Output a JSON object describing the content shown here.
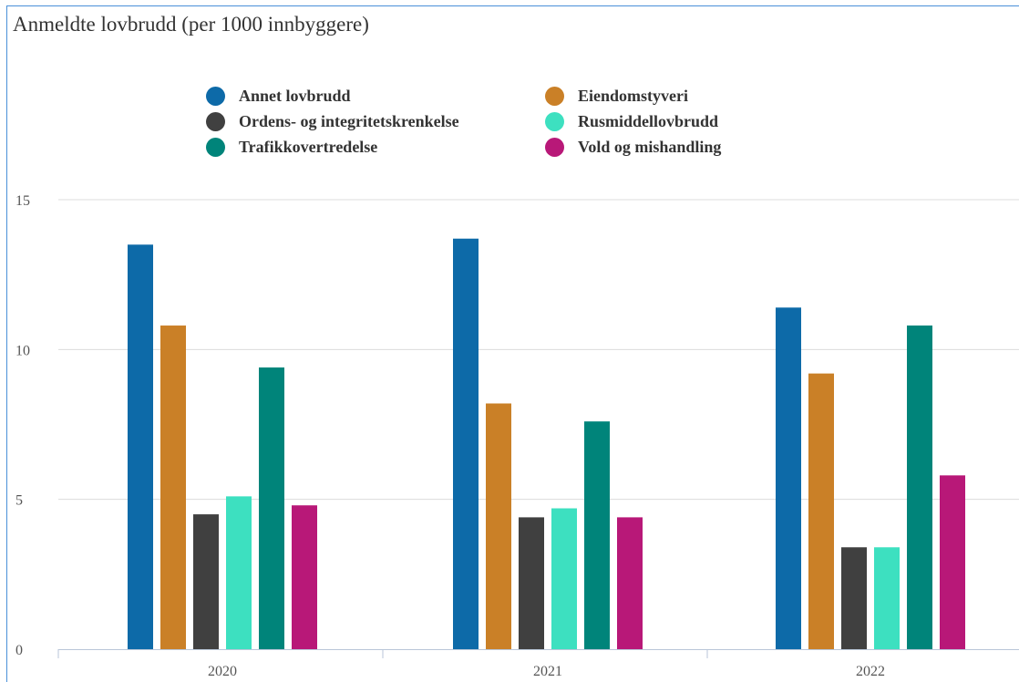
{
  "chart_data": {
    "type": "bar",
    "title": "Anmeldte lovbrudd (per 1000 innbyggere)",
    "xlabel": "",
    "ylabel": "",
    "categories": [
      "2020",
      "2021",
      "2022"
    ],
    "ylim": [
      0,
      15
    ],
    "yticks": [
      0,
      5,
      10,
      15
    ],
    "grid": true,
    "legend_position": "top",
    "series": [
      {
        "name": "Annet lovbrudd",
        "color": "#0d6aa8",
        "values": [
          13.5,
          13.7,
          11.4
        ]
      },
      {
        "name": "Eiendomstyveri",
        "color": "#ca8027",
        "values": [
          10.8,
          8.2,
          9.2
        ]
      },
      {
        "name": "Ordens- og integritetskrenkelse",
        "color": "#404040",
        "values": [
          4.5,
          4.4,
          3.4
        ]
      },
      {
        "name": "Rusmiddellovbrudd",
        "color": "#3de0c0",
        "values": [
          5.1,
          4.7,
          3.4
        ]
      },
      {
        "name": "Trafikkovertredelse",
        "color": "#00847a",
        "values": [
          9.4,
          7.6,
          10.8
        ]
      },
      {
        "name": "Vold og mishandling",
        "color": "#b81878",
        "values": [
          4.8,
          4.4,
          5.8
        ]
      }
    ]
  }
}
